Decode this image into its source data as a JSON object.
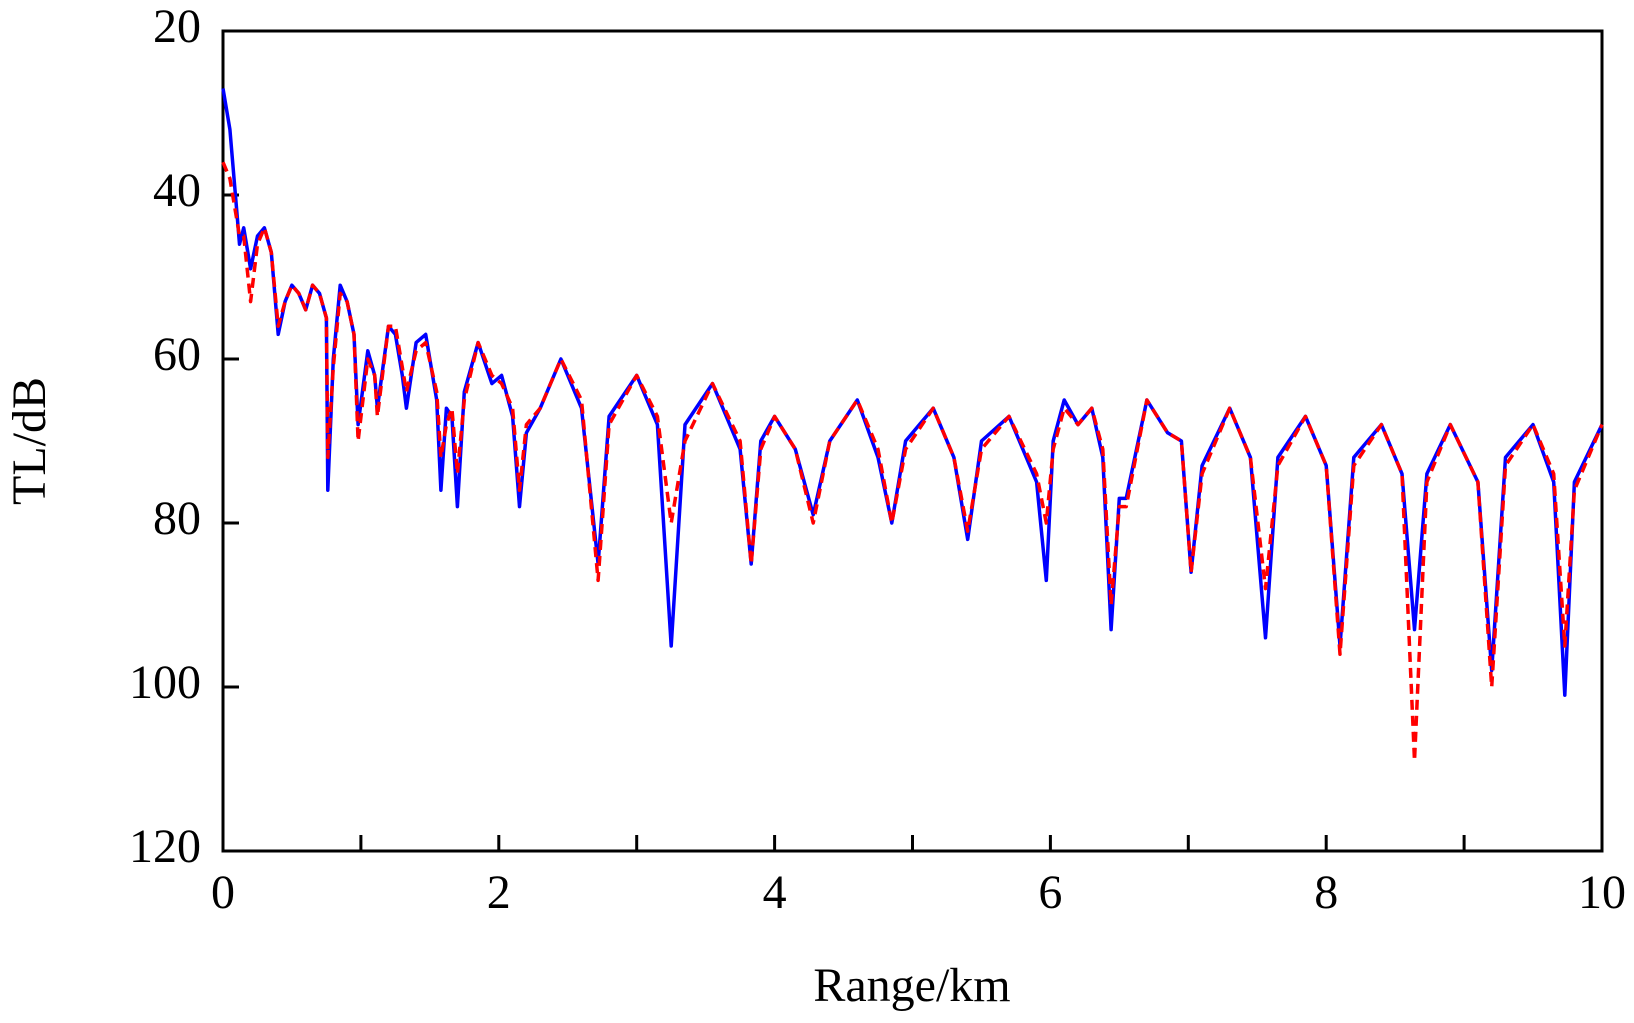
{
  "chart_data": {
    "type": "line",
    "x_label": "Range/km",
    "y_label": "TL/dB",
    "x": [
      0,
      0.05,
      0.1,
      0.12,
      0.15,
      0.2,
      0.25,
      0.3,
      0.35,
      0.4,
      0.45,
      0.5,
      0.55,
      0.6,
      0.65,
      0.7,
      0.75,
      0.76,
      0.8,
      0.85,
      0.9,
      0.95,
      0.98,
      1.05,
      1.1,
      1.12,
      1.2,
      1.25,
      1.3,
      1.33,
      1.4,
      1.47,
      1.55,
      1.58,
      1.62,
      1.66,
      1.7,
      1.75,
      1.85,
      1.95,
      2.02,
      2.1,
      2.15,
      2.2,
      2.3,
      2.45,
      2.6,
      2.72,
      2.8,
      3.0,
      3.15,
      3.25,
      3.35,
      3.55,
      3.75,
      3.83,
      3.9,
      4.0,
      4.15,
      4.28,
      4.4,
      4.6,
      4.75,
      4.85,
      4.95,
      5.15,
      5.3,
      5.4,
      5.5,
      5.7,
      5.9,
      5.97,
      6.02,
      6.1,
      6.2,
      6.3,
      6.38,
      6.44,
      6.5,
      6.55,
      6.7,
      6.85,
      6.95,
      7.02,
      7.1,
      7.3,
      7.45,
      7.56,
      7.65,
      7.85,
      8.0,
      8.1,
      8.2,
      8.4,
      8.55,
      8.64,
      8.73,
      8.9,
      9.1,
      9.2,
      9.3,
      9.5,
      9.65,
      9.73,
      9.8,
      10
    ],
    "series": [
      {
        "color": "#0000ff",
        "style": "solid",
        "values": [
          27,
          32,
          42,
          46,
          44,
          49,
          45,
          44,
          47,
          57,
          53,
          51,
          52,
          54,
          51,
          52,
          55,
          76,
          60,
          51,
          53,
          57,
          68,
          59,
          62,
          66,
          56,
          57,
          62,
          66,
          58,
          57,
          65,
          76,
          66,
          67,
          78,
          64,
          58,
          63,
          62,
          67,
          78,
          69,
          66,
          60,
          66,
          85,
          67,
          62,
          68,
          95,
          68,
          63,
          71,
          85,
          70,
          67,
          71,
          79,
          70,
          65,
          72,
          80,
          70,
          66,
          72,
          82,
          70,
          67,
          75,
          87,
          70,
          65,
          68,
          66,
          72,
          93,
          77,
          77,
          65,
          69,
          70,
          86,
          73,
          66,
          72,
          94,
          72,
          67,
          73,
          95,
          72,
          68,
          74,
          93,
          74,
          68,
          75,
          98,
          72,
          68,
          75,
          101,
          75,
          68
        ]
      },
      {
        "color": "#ff0000",
        "style": "dashed",
        "values": [
          36,
          38,
          43,
          45,
          45,
          53,
          46,
          44,
          47,
          56,
          53,
          51,
          52,
          54,
          51,
          52,
          55,
          72,
          61,
          52,
          53,
          57,
          70,
          60,
          62,
          67,
          56,
          56,
          61,
          64,
          59,
          58,
          64,
          72,
          68,
          66,
          74,
          65,
          58,
          62,
          63,
          66,
          76,
          68,
          66,
          60,
          65,
          87,
          68,
          62,
          67,
          80,
          70,
          63,
          70,
          85,
          71,
          67,
          71,
          80,
          70,
          65,
          71,
          80,
          71,
          66,
          72,
          81,
          71,
          67,
          74,
          80,
          71,
          66,
          68,
          66,
          71,
          90,
          78,
          78,
          65,
          69,
          70,
          86,
          74,
          66,
          72,
          88,
          73,
          67,
          73,
          96,
          73,
          68,
          74,
          109,
          75,
          68,
          75,
          100,
          73,
          68,
          74,
          95,
          76,
          68
        ]
      }
    ],
    "xlim": [
      0,
      10
    ],
    "xticks": [
      0,
      2,
      4,
      6,
      8,
      10
    ],
    "xminorticks": [
      1,
      3,
      5,
      7,
      9
    ],
    "ylim": [
      120,
      20
    ],
    "yticks": [
      20,
      40,
      60,
      80,
      100,
      120
    ]
  }
}
